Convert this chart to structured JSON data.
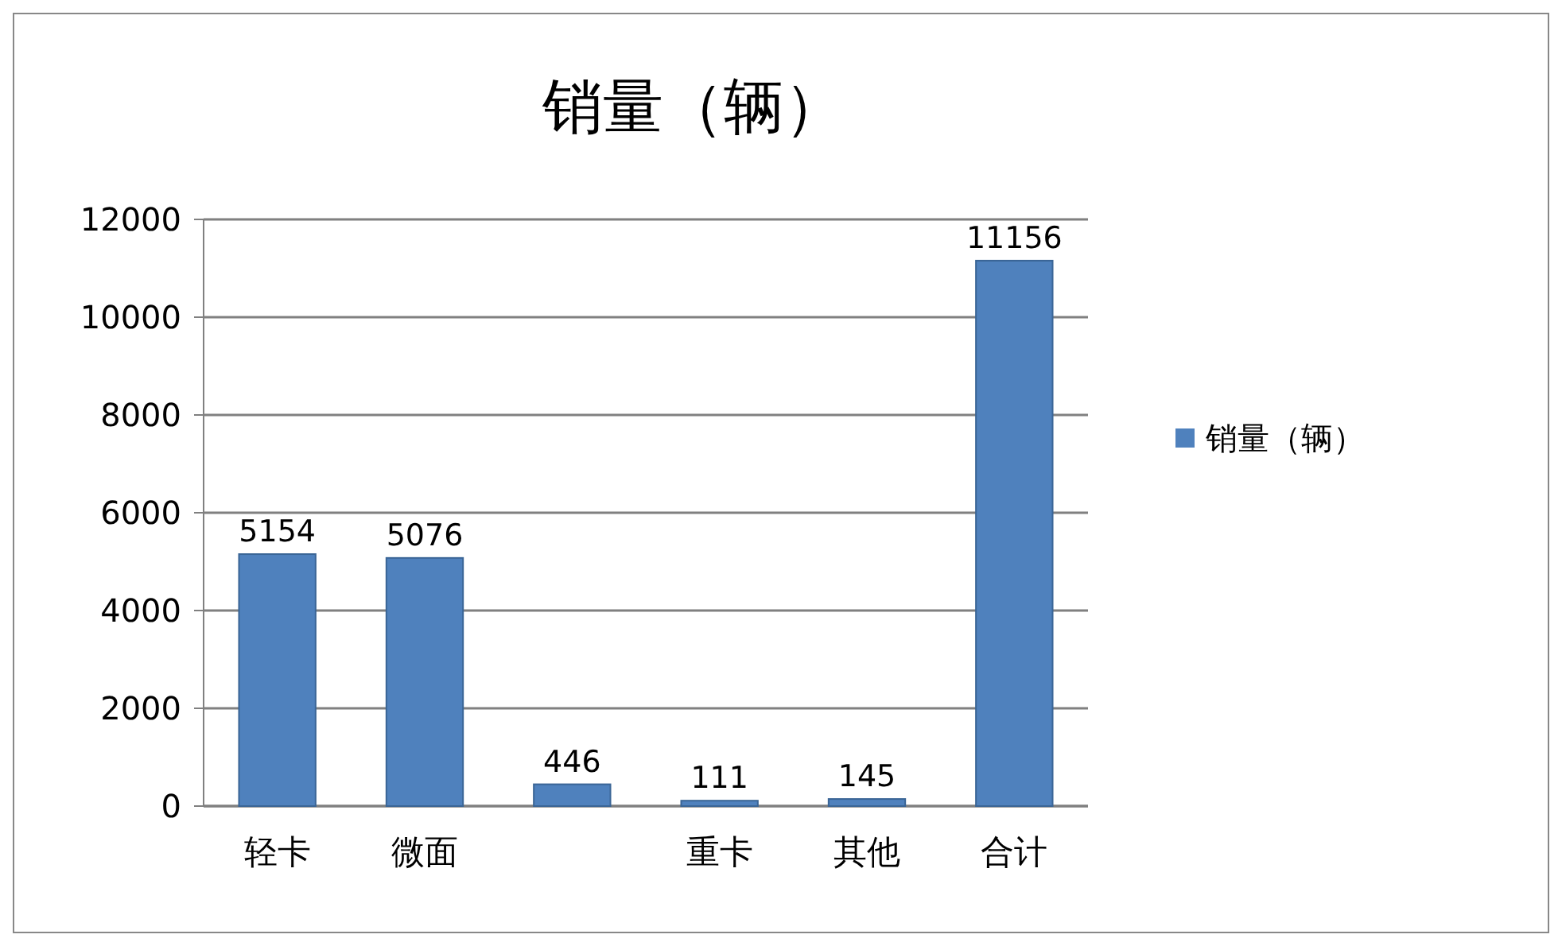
{
  "chart_data": {
    "type": "bar",
    "title": "销量（辆）",
    "categories": [
      "轻卡",
      "微面",
      null,
      "重卡",
      "其他",
      "合计"
    ],
    "series": [
      {
        "name": "销量（辆）",
        "color": "#4f81bd",
        "values": [
          5154,
          5076,
          446,
          111,
          145,
          11156
        ]
      }
    ],
    "ylim": [
      0,
      12000
    ],
    "yticks": [
      0,
      2000,
      4000,
      6000,
      8000,
      10000,
      12000
    ],
    "grid": "y",
    "legend": "right",
    "data_labels": true
  }
}
